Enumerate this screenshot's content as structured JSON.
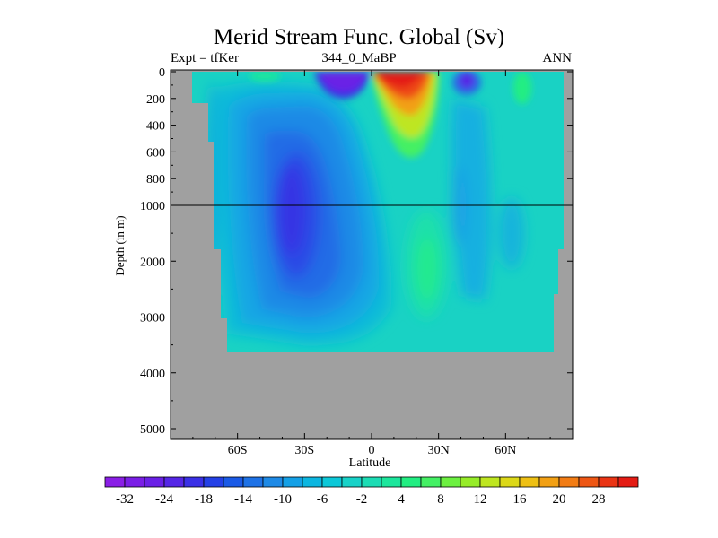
{
  "chart_data": {
    "type": "contour",
    "title": "Merid Stream Func. Global (Sv)",
    "subtitle_left": "Expt = tfKer",
    "subtitle_center": "344_0_MaBP",
    "subtitle_right": "ANN",
    "xlabel": "Latitude",
    "ylabel": "Depth (in m)",
    "x_ticks": [
      "60S",
      "30S",
      "0",
      "30N",
      "60N"
    ],
    "x_tick_values": [
      -60,
      -30,
      0,
      30,
      60
    ],
    "xlim": [
      -90,
      90
    ],
    "y_ticks": [
      "0",
      "200",
      "400",
      "600",
      "800",
      "1000",
      "2000",
      "3000",
      "4000",
      "5000"
    ],
    "y_tick_values": [
      0,
      200,
      400,
      600,
      800,
      1000,
      2000,
      3000,
      4000,
      5000
    ],
    "ylim": [
      5000,
      0
    ],
    "y_axis_note": "stretched upper 1000 m",
    "reference_line_depth": 1000,
    "land_color": "#a0a0a0",
    "colorbar": {
      "labels": [
        "-32",
        "-24",
        "-18",
        "-14",
        "-10",
        "-6",
        "-2",
        "4",
        "8",
        "12",
        "16",
        "20",
        "28"
      ],
      "colors": [
        "#8a1ee6",
        "#7a1ee6",
        "#6a20e6",
        "#5526e6",
        "#3a30e6",
        "#2440e6",
        "#1a5ae6",
        "#1e72e6",
        "#1e8ae6",
        "#14a0e6",
        "#0cb6e0",
        "#0cc8d8",
        "#18d2c8",
        "#1cdcb4",
        "#1ce69c",
        "#22ee82",
        "#44f064",
        "#6cf040",
        "#96ec28",
        "#bee620",
        "#dcd818",
        "#eec014",
        "#f2a014",
        "#f27c14",
        "#ee5614",
        "#ea3414",
        "#e41c14"
      ]
    },
    "features": [
      {
        "name": "Southern Ocean deep overturning cell",
        "lat_range": [
          -50,
          -15
        ],
        "depth_range": [
          200,
          3500
        ],
        "min_value": -22
      },
      {
        "name": "southern subtropical wind-driven cell",
        "lat_range": [
          -25,
          -2
        ],
        "depth_range": [
          0,
          150
        ],
        "min_value": -32
      },
      {
        "name": "northern subtropical wind-driven cell",
        "lat_range": [
          0,
          30
        ],
        "depth_range": [
          0,
          500
        ],
        "max_value": 30
      },
      {
        "name": "northern mid-latitude shallow cell",
        "lat_range": [
          38,
          52
        ],
        "depth_range": [
          0,
          150
        ],
        "min_value": -16
      },
      {
        "name": "northern hemisphere positive deep cell",
        "lat_range": [
          18,
          35
        ],
        "depth_range": [
          1500,
          3000
        ],
        "max_value": 4
      }
    ]
  }
}
